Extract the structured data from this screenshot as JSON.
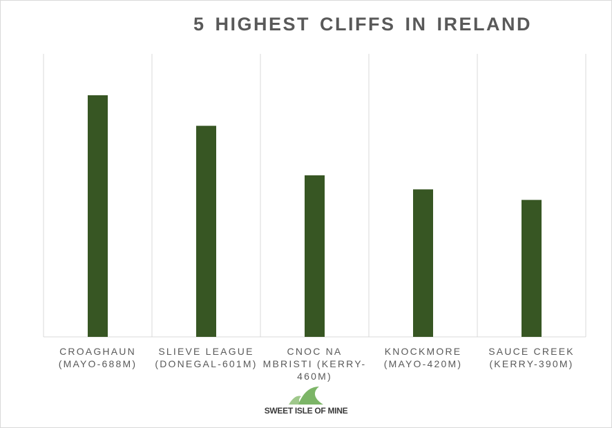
{
  "chart_data": {
    "type": "bar",
    "title": "5 HIGHEST CLIFFS IN IRELAND",
    "categories": [
      "CROAGHAUN (MAYO-688M)",
      "SLIEVE LEAGUE (DONEGAL-601M)",
      "CNOC NA MBRISTI (KERRY-460M)",
      "KNOCKMORE (MAYO-420M)",
      "SAUCE CREEK (KERRY-390M)"
    ],
    "values": [
      688,
      601,
      460,
      420,
      390
    ],
    "color": "#375623",
    "ylim": [
      0,
      800
    ],
    "watermark": "SWEET ISLE OF MINE"
  }
}
